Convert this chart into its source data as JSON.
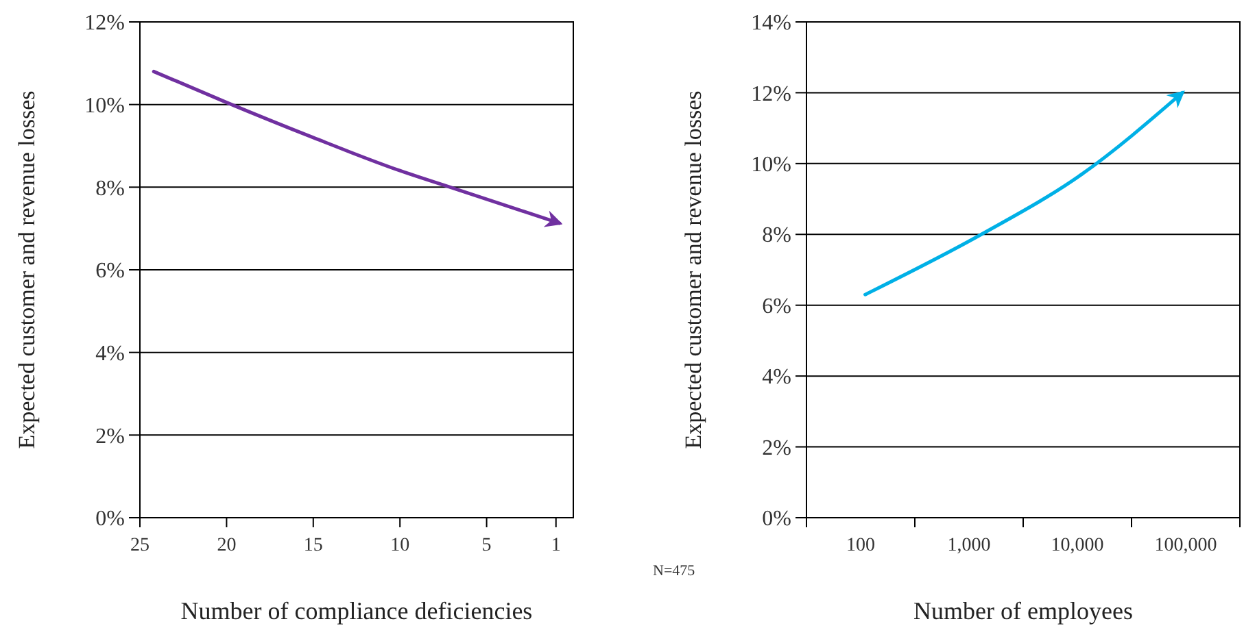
{
  "chart_data": [
    {
      "type": "line",
      "xlabel": "Number of compliance deficiencies",
      "ylabel": "Expected customer and revenue losses",
      "xlim": [
        25,
        0
      ],
      "xticks": [
        25,
        20,
        15,
        10,
        5,
        1
      ],
      "ylim": [
        0,
        12
      ],
      "yticks": [
        {
          "value": 0,
          "label": "0%"
        },
        {
          "value": 2,
          "label": "2%"
        },
        {
          "value": 4,
          "label": "4%"
        },
        {
          "value": 6,
          "label": "6%"
        },
        {
          "value": 8,
          "label": "8%"
        },
        {
          "value": 10,
          "label": "10%"
        },
        {
          "value": 12,
          "label": "12%"
        }
      ],
      "grid": "y",
      "series": [
        {
          "color": "#7030a0",
          "x": [
            24.2,
            20,
            15,
            10,
            7.1,
            0.8
          ],
          "values": [
            10.8,
            10.05,
            9.2,
            8.4,
            8.0,
            7.13
          ]
        }
      ]
    },
    {
      "type": "line",
      "xlabel": "Number of employees",
      "ylabel": "Expected customer and revenue losses",
      "log": "x",
      "xlim": [
        31.6,
        316228
      ],
      "xticks": [
        {
          "value": 31.6,
          "label": null
        },
        {
          "value": 100,
          "label": "100"
        },
        {
          "value": 316,
          "label": null
        },
        {
          "value": 1000,
          "label": "1,000"
        },
        {
          "value": 3162,
          "label": null
        },
        {
          "value": 10000,
          "label": "10,000"
        },
        {
          "value": 31623,
          "label": null
        },
        {
          "value": 100000,
          "label": "100,000"
        },
        {
          "value": 316228,
          "label": null
        }
      ],
      "ylim": [
        0,
        14
      ],
      "yticks": [
        {
          "value": 0,
          "label": "0%"
        },
        {
          "value": 2,
          "label": "2%"
        },
        {
          "value": 4,
          "label": "4%"
        },
        {
          "value": 6,
          "label": "6%"
        },
        {
          "value": 8,
          "label": "8%"
        },
        {
          "value": 10,
          "label": "10%"
        },
        {
          "value": 12,
          "label": "12%"
        },
        {
          "value": 14,
          "label": "14%"
        }
      ],
      "grid": "y",
      "annotations": [
        "N=475"
      ],
      "series": [
        {
          "color": "#00b0e6",
          "x": [
            110,
            1300,
            11000,
            93000
          ],
          "values": [
            6.3,
            8.0,
            9.7,
            12.0
          ]
        }
      ]
    }
  ]
}
